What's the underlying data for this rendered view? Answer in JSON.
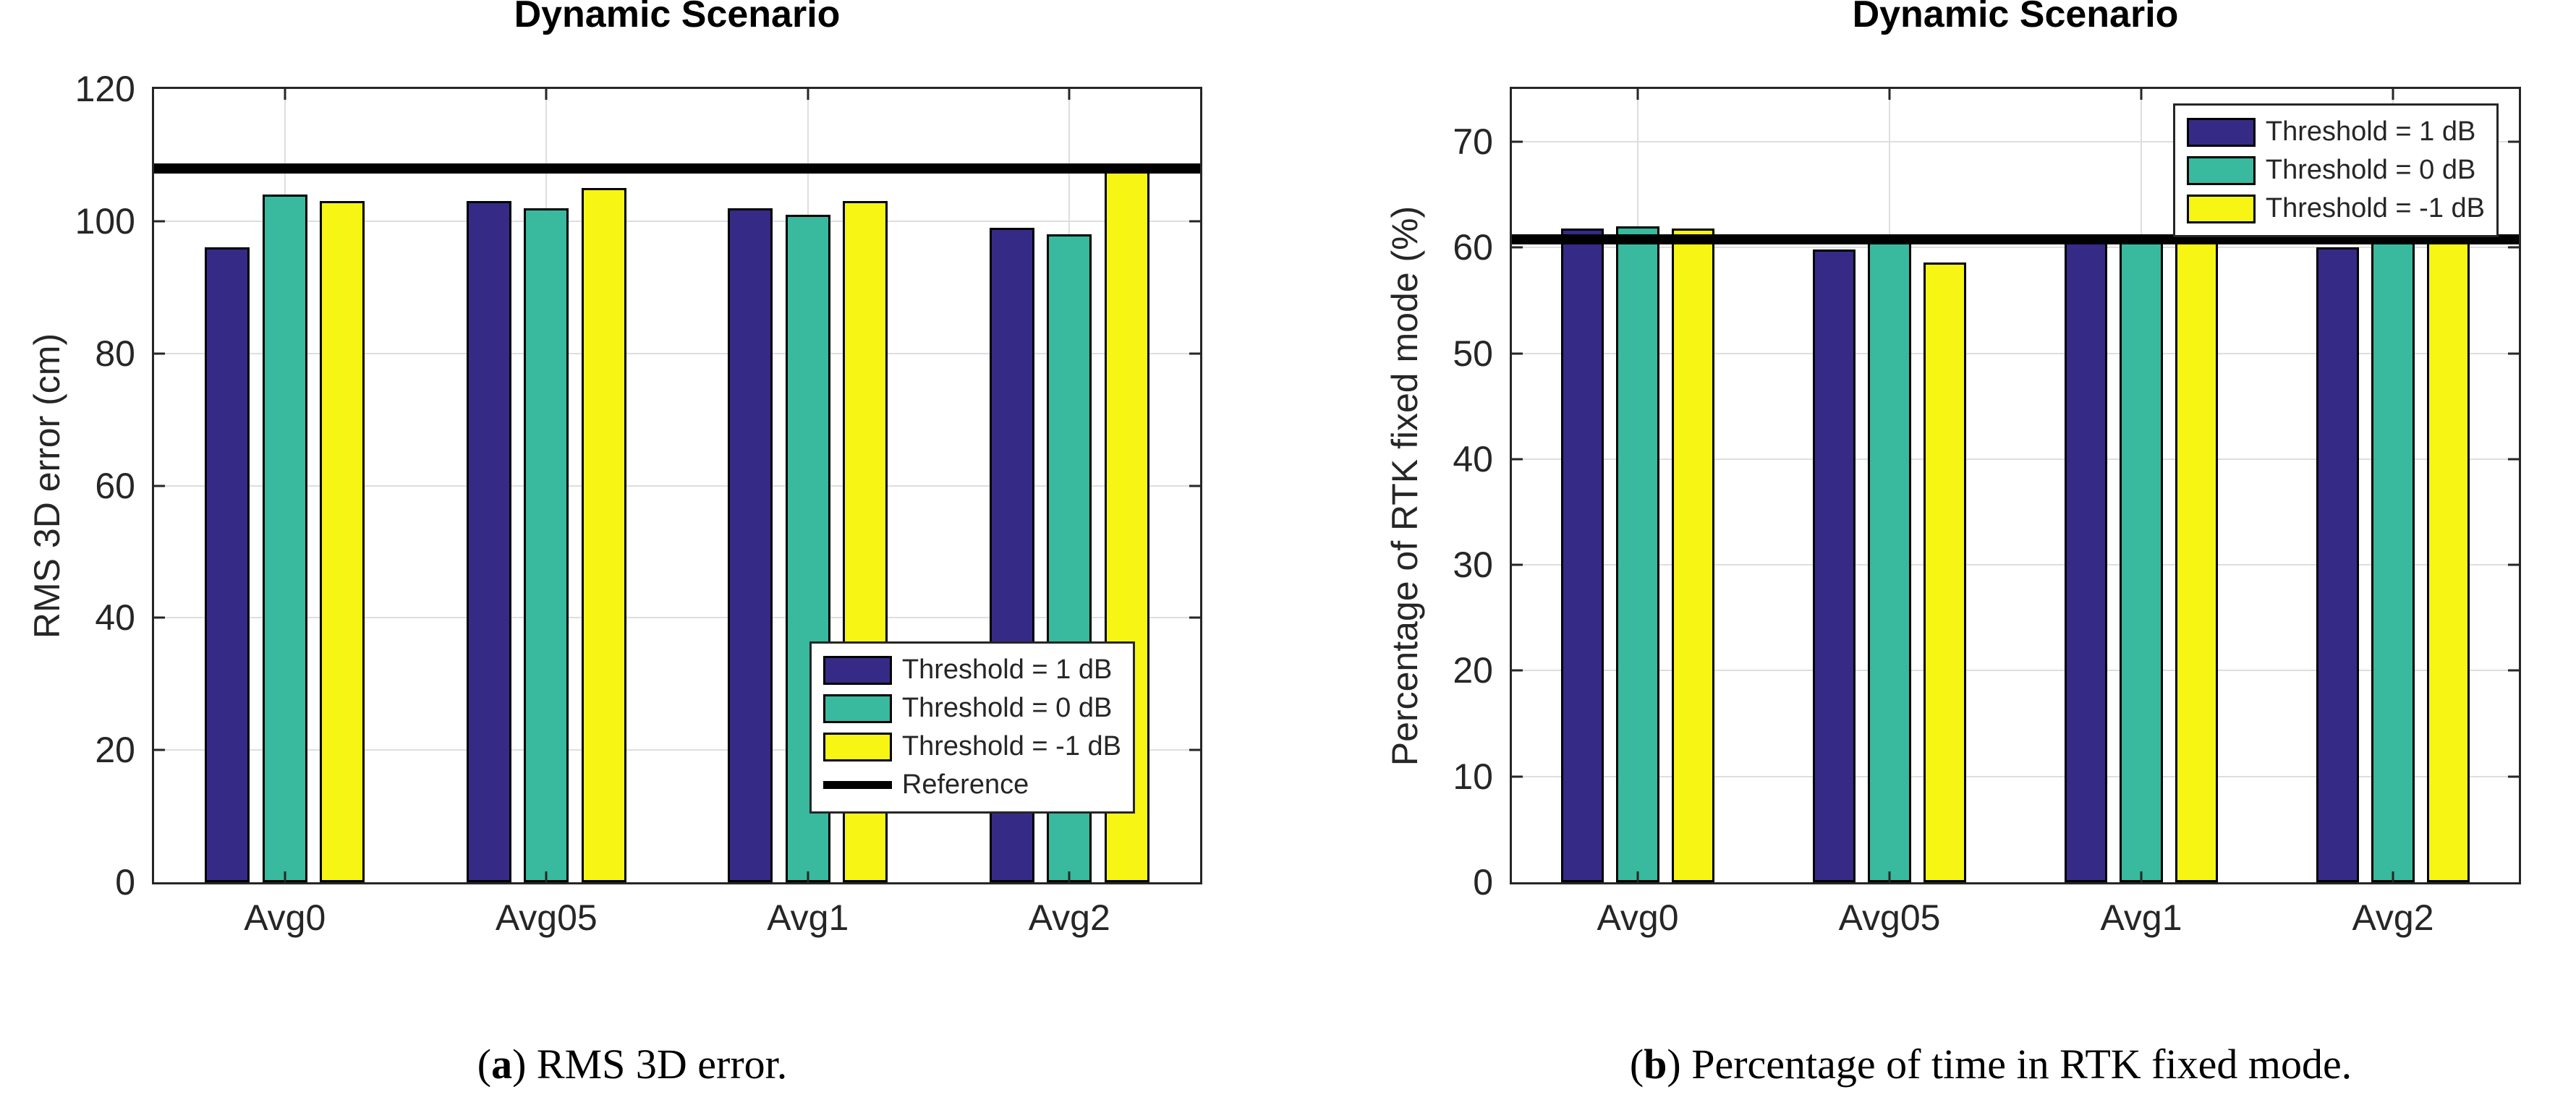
{
  "page": {
    "background": "#FFFFFF"
  },
  "colors": {
    "series_blue": "#352B87",
    "series_teal": "#39B99E",
    "series_yellow": "#F6F513",
    "reference_black": "#000000",
    "axis": "#262626",
    "grid": "#DEDEDE"
  },
  "captions": {
    "a": {
      "open": "(",
      "letter": "a",
      "rest": ") RMS 3D error."
    },
    "b": {
      "open": "(",
      "letter": "b",
      "rest": ") Percentage of time in RTK fixed mode."
    }
  },
  "chart_data": [
    {
      "id": "a",
      "type": "bar",
      "title": "Dynamic Scenario",
      "xlabel": "",
      "ylabel": "RMS 3D error (cm)",
      "categories": [
        "Avg0",
        "Avg05",
        "Avg1",
        "Avg2"
      ],
      "series": [
        {
          "name": "Threshold = 1 dB",
          "color": "#352B87",
          "values": [
            96,
            103,
            102,
            99
          ]
        },
        {
          "name": "Threshold = 0 dB",
          "color": "#39B99E",
          "values": [
            104,
            102,
            101,
            98
          ]
        },
        {
          "name": "Threshold = -1 dB",
          "color": "#F6F513",
          "values": [
            103,
            105,
            103,
            107.5
          ]
        }
      ],
      "reference": {
        "label": "Reference",
        "value": 108,
        "color": "#000000",
        "show_in_legend": true
      },
      "ylim": [
        0,
        120
      ],
      "ytick_step": 20,
      "yticks": [
        0,
        20,
        40,
        60,
        80,
        100,
        120
      ],
      "grid": true,
      "legend_position": "bottom-right"
    },
    {
      "id": "b",
      "type": "bar",
      "title": "Dynamic Scenario",
      "xlabel": "",
      "ylabel": "Percentage of RTK fixed mode (%)",
      "categories": [
        "Avg0",
        "Avg05",
        "Avg1",
        "Avg2"
      ],
      "series": [
        {
          "name": "Threshold = 1 dB",
          "color": "#352B87",
          "values": [
            61.8,
            59.8,
            60.5,
            60
          ]
        },
        {
          "name": "Threshold = 0 dB",
          "color": "#39B99E",
          "values": [
            62,
            60.5,
            60.5,
            60.5
          ]
        },
        {
          "name": "Threshold = -1 dB",
          "color": "#F6F513",
          "values": [
            61.8,
            58.6,
            60.5,
            60.5
          ]
        }
      ],
      "reference": {
        "label": "Reference",
        "value": 60.8,
        "color": "#000000",
        "show_in_legend": false
      },
      "ylim": [
        0,
        75
      ],
      "ytick_step": 10,
      "yticks": [
        0,
        10,
        20,
        30,
        40,
        50,
        60,
        70
      ],
      "grid": true,
      "legend_position": "top-right"
    }
  ]
}
